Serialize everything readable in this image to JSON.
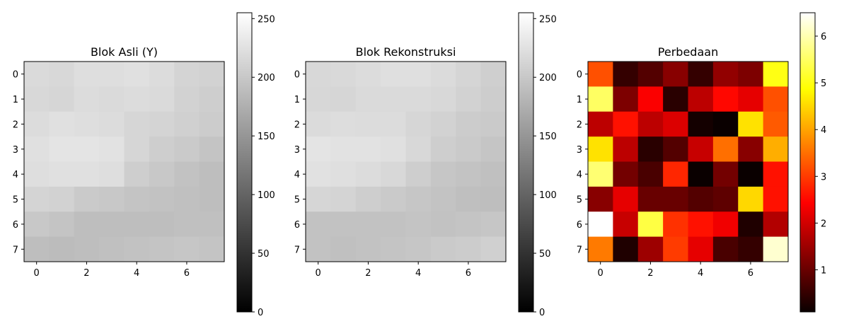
{
  "chart_data": [
    {
      "type": "heatmap",
      "title": "Blok Asli (Y)",
      "colormap": "gray",
      "x_ticks": [
        "0",
        "2",
        "4",
        "6"
      ],
      "y_ticks": [
        "0",
        "1",
        "2",
        "3",
        "4",
        "5",
        "6",
        "7"
      ],
      "vmin": 0,
      "vmax": 255,
      "colorbar_ticks": [
        "0",
        "50",
        "100",
        "150",
        "200",
        "250"
      ],
      "values": [
        [
          218,
          216,
          222,
          222,
          224,
          220,
          212,
          210
        ],
        [
          216,
          214,
          220,
          218,
          220,
          218,
          210,
          206
        ],
        [
          220,
          224,
          222,
          220,
          214,
          212,
          208,
          204
        ],
        [
          224,
          228,
          228,
          226,
          214,
          206,
          202,
          196
        ],
        [
          222,
          224,
          224,
          222,
          206,
          200,
          194,
          190
        ],
        [
          212,
          210,
          202,
          200,
          196,
          194,
          192,
          190
        ],
        [
          200,
          196,
          190,
          190,
          190,
          190,
          192,
          192
        ],
        [
          190,
          188,
          190,
          192,
          194,
          196,
          198,
          196
        ]
      ]
    },
    {
      "type": "heatmap",
      "title": "Blok Rekonstruksi",
      "colormap": "gray",
      "x_ticks": [
        "0",
        "2",
        "4",
        "6"
      ],
      "y_ticks": [
        "0",
        "1",
        "2",
        "3",
        "4",
        "5",
        "6",
        "7"
      ],
      "vmin": 0,
      "vmax": 255,
      "colorbar_ticks": [
        "0",
        "50",
        "100",
        "150",
        "200",
        "250"
      ],
      "values": [
        [
          216,
          217,
          220,
          223,
          223,
          219,
          213,
          207
        ],
        [
          215,
          214,
          218,
          218,
          218,
          216,
          210,
          205
        ],
        [
          219,
          221,
          220,
          220,
          214,
          210,
          204,
          202
        ],
        [
          228,
          226,
          226,
          224,
          216,
          206,
          202,
          197
        ],
        [
          225,
          223,
          220,
          216,
          206,
          198,
          195,
          192
        ],
        [
          214,
          212,
          206,
          202,
          198,
          195,
          191,
          190
        ],
        [
          194,
          194,
          194,
          194,
          196,
          194,
          196,
          198
        ],
        [
          194,
          192,
          194,
          196,
          198,
          202,
          204,
          208
        ]
      ]
    },
    {
      "type": "heatmap",
      "title": "Perbedaan",
      "colormap": "hot",
      "x_ticks": [
        "0",
        "2",
        "4",
        "6"
      ],
      "y_ticks": [
        "0",
        "1",
        "2",
        "3",
        "4",
        "5",
        "6",
        "7"
      ],
      "vmin": 0.1,
      "vmax": 6.5,
      "colorbar_ticks": [
        "1",
        "2",
        "3",
        "4",
        "5",
        "6"
      ],
      "values": [
        [
          3.2,
          0.5,
          0.8,
          1.3,
          0.5,
          1.4,
          1.2,
          5.0
        ],
        [
          5.5,
          1.2,
          2.4,
          0.4,
          1.8,
          2.5,
          2.2,
          3.2
        ],
        [
          1.8,
          2.6,
          1.8,
          2.1,
          0.2,
          0.1,
          4.6,
          3.3
        ],
        [
          4.6,
          1.8,
          0.4,
          0.8,
          1.9,
          3.5,
          1.3,
          4.1
        ],
        [
          5.6,
          1.1,
          0.7,
          2.8,
          0.1,
          1.1,
          0.1,
          2.6
        ],
        [
          1.3,
          2.2,
          1.0,
          1.0,
          0.8,
          0.9,
          4.5,
          2.6
        ],
        [
          6.5,
          1.9,
          5.3,
          2.9,
          2.6,
          2.3,
          0.3,
          1.7
        ],
        [
          3.6,
          0.3,
          1.5,
          3.0,
          2.2,
          0.7,
          0.5,
          6.2
        ]
      ]
    }
  ]
}
